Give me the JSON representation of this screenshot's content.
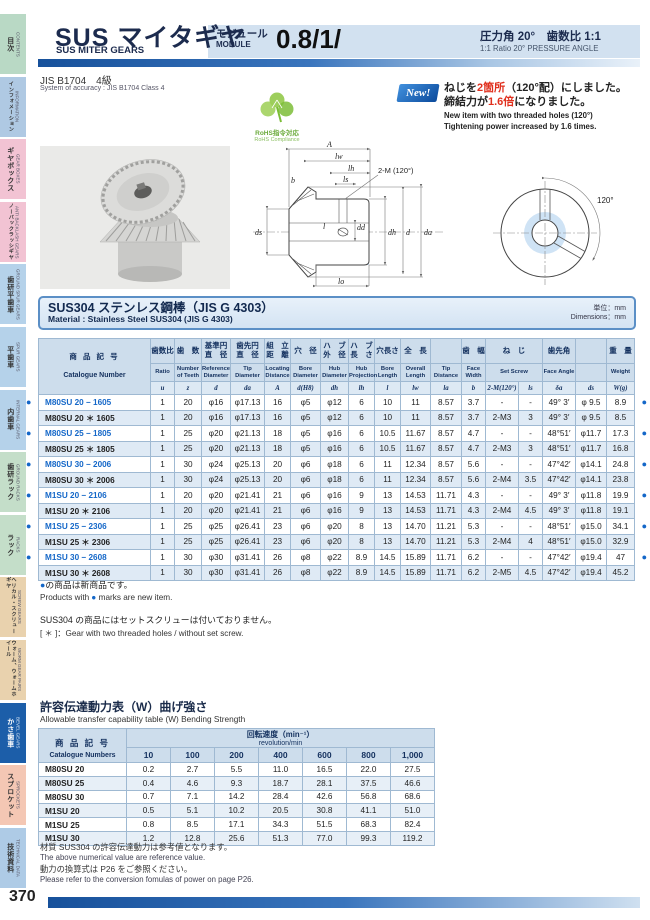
{
  "page_number": "370",
  "colors": {
    "accent_blue": "#1b5fa0",
    "new_red": "#e0301e",
    "catalogue_blue": "#1467c8",
    "active_tab": "#1c5ea9"
  },
  "sidebar": {
    "tabs": [
      {
        "jp": "目次",
        "en": "CONTENTS",
        "color": "#b9d9c5",
        "active": false
      },
      {
        "jp": "インフォメーション",
        "en": "INFORMATION",
        "color": "#afc9e3",
        "active": false
      },
      {
        "jp": "ギヤボックス",
        "en": "GEAR BOXES",
        "color": "#f2c3d3",
        "active": false
      },
      {
        "jp": "ノーバックラッシギヤ",
        "en": "ANTI BACKLASH GEARS",
        "color": "#f2c3d3",
        "active": false
      },
      {
        "jp": "歯研平歯車",
        "en": "GROUND SPUR GEARS",
        "color": "#b5d2ea",
        "active": false
      },
      {
        "jp": "平歯車",
        "en": "SPUR GEARS",
        "color": "#b5d2ea",
        "active": false
      },
      {
        "jp": "内歯車",
        "en": "INTERNAL GEARS",
        "color": "#b5d2ea",
        "active": false
      },
      {
        "jp": "歯研ラック",
        "en": "GROUND RACKS",
        "color": "#c4dec9",
        "active": false
      },
      {
        "jp": "ラック",
        "en": "RACKS",
        "color": "#c4dec9",
        "active": false
      },
      {
        "jp": "ヘリカル・スクリューギヤ",
        "en": "SCREW GEARS",
        "color": "#e9d2ae",
        "active": false
      },
      {
        "jp": "ウォーム、ウォームホイール",
        "en": "WORM GEAR PAIRS",
        "color": "#e9d2ae",
        "active": false
      },
      {
        "jp": "かさ歯車",
        "en": "BEVEL GEARS",
        "color": "#1c5ea9",
        "active": true
      },
      {
        "jp": "スプロケット",
        "en": "SPROCKETS",
        "color": "#f4c7b4",
        "active": false
      },
      {
        "jp": "技術資料",
        "en": "TECHNICAL DATA",
        "color": "#aecbe6",
        "active": false
      }
    ]
  },
  "header": {
    "title_jp": "SUS マイタギヤ",
    "title_en": "SUS MITER GEARS",
    "module_label_jp": "モジュール",
    "module_label_en": "MODULE",
    "module_value": "0.8/1/",
    "pressure_jp": "圧力角 20°　歯数比 1:1",
    "pressure_en": "1:1 Ratio  20° PRESSURE ANGLE"
  },
  "accuracy": {
    "jp": "JIS B1704　4級",
    "en": "System of accuracy : JIS B1704 Class 4"
  },
  "rohs": {
    "jp": "RoHS指令対応",
    "en": "RoHS Compliance"
  },
  "notice": {
    "badge": "New!",
    "line1_pre": "ねじを",
    "line1_red": "2箇所",
    "line1_mid": "（120°配）",
    "line1_post": "にしました。",
    "line2_pre": "締結力が",
    "line2_red": "1.6倍",
    "line2_post": "になりました。",
    "en1": "New item with two threaded holes (120°)",
    "en2": "Tightening power increased by 1.6 times."
  },
  "drawing": {
    "labels": {
      "A": "A",
      "lw": "lw",
      "lh": "lh",
      "ls": "ls",
      "screw": "2-M (120°)",
      "b": "b",
      "ds": "ds",
      "l": "l",
      "dd": "dd",
      "dh": "dh",
      "d": "d",
      "da": "da",
      "lo": "lo",
      "angle": "120°"
    }
  },
  "material_section": {
    "title_jp": "SUS304 ステンレス鋼棒（JIS G 4303）",
    "title_en": "Material : Stainless Steel SUS304 (JIS G 4303)",
    "unit_jp": "単位：mm",
    "unit_en": "Dimensions：mm"
  },
  "main_table": {
    "cat_header": {
      "jp": "商 品 記 号",
      "en": "Catalogue Number"
    },
    "cols": [
      {
        "jp": "歯数比",
        "en": "Ratio",
        "sym": "u"
      },
      {
        "jp": "歯　数",
        "en": "Number of Teeth",
        "sym": "z"
      },
      {
        "jp": "基準円\n直　径",
        "en": "Reference Diameter",
        "sym": "d"
      },
      {
        "jp": "歯先円\n直　径",
        "en": "Tip Diameter",
        "sym": "da"
      },
      {
        "jp": "組　立\n距　離",
        "en": "Locating Distance",
        "sym": "A"
      },
      {
        "jp": "穴　径",
        "en": "Bore Diameter",
        "sym": "d(H8)"
      },
      {
        "jp": "ハ　ブ\n外　径",
        "en": "Hub Diameter",
        "sym": "dh"
      },
      {
        "jp": "ハ　ブ\n長　さ",
        "en": "Hub Projection",
        "sym": "lh"
      },
      {
        "jp": "穴長さ",
        "en": "Bore Length",
        "sym": "l"
      },
      {
        "jp": "全　長",
        "en": "Overall Length",
        "sym": "lw"
      },
      {
        "jp": "",
        "en": "Tip Distance",
        "sym": "la"
      },
      {
        "jp": "歯　幅",
        "en": "Face Width",
        "sym": "b"
      },
      {
        "jp": "ね　じ",
        "en": "Set Screw",
        "sym": "2-M(120°)"
      },
      {
        "jp": "",
        "en": "",
        "sym": "ls"
      },
      {
        "jp": "歯先角",
        "en": "Face Angle",
        "sym": "δa"
      },
      {
        "jp": "",
        "en": "",
        "sym": "ds"
      },
      {
        "jp": "重　量",
        "en": "Weight",
        "sym": "W(g)"
      }
    ],
    "rows": [
      {
        "catalogue": "M80SU 20 − 1605",
        "new": true,
        "values": [
          "1",
          "20",
          "φ16",
          "φ17.13",
          "16",
          "φ5",
          "φ12",
          "6",
          "10",
          "11",
          "8.57",
          "3.7",
          "-",
          "-",
          "49° 3′",
          "φ 9.5",
          "8.9"
        ]
      },
      {
        "catalogue": "M80SU 20 ＊ 1605",
        "new": false,
        "values": [
          "1",
          "20",
          "φ16",
          "φ17.13",
          "16",
          "φ5",
          "φ12",
          "6",
          "10",
          "11",
          "8.57",
          "3.7",
          "2-M3",
          "3",
          "49° 3′",
          "φ 9.5",
          "8.5"
        ]
      },
      {
        "catalogue": "M80SU 25 − 1805",
        "new": true,
        "values": [
          "1",
          "25",
          "φ20",
          "φ21.13",
          "18",
          "φ5",
          "φ16",
          "6",
          "10.5",
          "11.67",
          "8.57",
          "4.7",
          "-",
          "-",
          "48°51′",
          "φ11.7",
          "17.3"
        ]
      },
      {
        "catalogue": "M80SU 25 ＊ 1805",
        "new": false,
        "values": [
          "1",
          "25",
          "φ20",
          "φ21.13",
          "18",
          "φ5",
          "φ16",
          "6",
          "10.5",
          "11.67",
          "8.57",
          "4.7",
          "2-M3",
          "3",
          "48°51′",
          "φ11.7",
          "16.8"
        ]
      },
      {
        "catalogue": "M80SU 30 − 2006",
        "new": true,
        "values": [
          "1",
          "30",
          "φ24",
          "φ25.13",
          "20",
          "φ6",
          "φ18",
          "6",
          "11",
          "12.34",
          "8.57",
          "5.6",
          "-",
          "-",
          "47°42′",
          "φ14.1",
          "24.8"
        ]
      },
      {
        "catalogue": "M80SU 30 ＊ 2006",
        "new": false,
        "values": [
          "1",
          "30",
          "φ24",
          "φ25.13",
          "20",
          "φ6",
          "φ18",
          "6",
          "11",
          "12.34",
          "8.57",
          "5.6",
          "2-M4",
          "3.5",
          "47°42′",
          "φ14.1",
          "23.8"
        ]
      },
      {
        "catalogue": "M1SU 20 − 2106",
        "new": true,
        "values": [
          "1",
          "20",
          "φ20",
          "φ21.41",
          "21",
          "φ6",
          "φ16",
          "9",
          "13",
          "14.53",
          "11.71",
          "4.3",
          "-",
          "-",
          "49° 3′",
          "φ11.8",
          "19.9"
        ]
      },
      {
        "catalogue": "M1SU 20 ＊ 2106",
        "new": false,
        "values": [
          "1",
          "20",
          "φ20",
          "φ21.41",
          "21",
          "φ6",
          "φ16",
          "9",
          "13",
          "14.53",
          "11.71",
          "4.3",
          "2-M4",
          "4.5",
          "49° 3′",
          "φ11.8",
          "19.1"
        ]
      },
      {
        "catalogue": "M1SU 25 − 2306",
        "new": true,
        "values": [
          "1",
          "25",
          "φ25",
          "φ26.41",
          "23",
          "φ6",
          "φ20",
          "8",
          "13",
          "14.70",
          "11.21",
          "5.3",
          "-",
          "-",
          "48°51′",
          "φ15.0",
          "34.1"
        ]
      },
      {
        "catalogue": "M1SU 25 ＊ 2306",
        "new": false,
        "values": [
          "1",
          "25",
          "φ25",
          "φ26.41",
          "23",
          "φ6",
          "φ20",
          "8",
          "13",
          "14.70",
          "11.21",
          "5.3",
          "2-M4",
          "4",
          "48°51′",
          "φ15.0",
          "32.9"
        ]
      },
      {
        "catalogue": "M1SU 30 − 2608",
        "new": true,
        "values": [
          "1",
          "30",
          "φ30",
          "φ31.41",
          "26",
          "φ8",
          "φ22",
          "8.9",
          "14.5",
          "15.89",
          "11.71",
          "6.2",
          "-",
          "-",
          "47°42′",
          "φ19.4",
          "47"
        ]
      },
      {
        "catalogue": "M1SU 30 ＊ 2608",
        "new": false,
        "values": [
          "1",
          "30",
          "φ30",
          "φ31.41",
          "26",
          "φ8",
          "φ22",
          "8.9",
          "14.5",
          "15.89",
          "11.71",
          "6.2",
          "2-M5",
          "4.5",
          "47°42′",
          "φ19.4",
          "45.2"
        ]
      }
    ]
  },
  "notes": {
    "bullet": "●",
    "n1_jp": "の商品は新商品です。",
    "n1_en_pre": "Products with ",
    "n1_en_post": " marks are new item.",
    "n2_jp": "SUS304 の商品にはセットスクリューは付いておりません。",
    "n2_en": "[ ＊ ]：Gear with two threaded holes / without set screw."
  },
  "capacity": {
    "title_jp": "許容伝達動力表（W）曲げ強さ",
    "title_en": "Allowable transfer capability table (W) Bending Strength",
    "cat_header_jp": "商 品 記 号",
    "cat_header_en": "Catalogue Numbers",
    "speed_header_jp": "回転速度（min⁻¹）",
    "speed_header_en": "revolution/min",
    "speeds": [
      "10",
      "100",
      "200",
      "400",
      "600",
      "800",
      "1,000"
    ],
    "rows": [
      {
        "name": "M80SU 20",
        "values": [
          "0.2",
          "2.7",
          "5.5",
          "11.0",
          "16.5",
          "22.0",
          "27.5"
        ]
      },
      {
        "name": "M80SU 25",
        "values": [
          "0.4",
          "4.6",
          "9.3",
          "18.7",
          "28.1",
          "37.5",
          "46.6"
        ]
      },
      {
        "name": "M80SU 30",
        "values": [
          "0.7",
          "7.1",
          "14.2",
          "28.4",
          "42.6",
          "56.8",
          "68.6"
        ]
      },
      {
        "name": "M1SU 20",
        "values": [
          "0.5",
          "5.1",
          "10.2",
          "20.5",
          "30.8",
          "41.1",
          "51.0"
        ]
      },
      {
        "name": "M1SU 25",
        "values": [
          "0.8",
          "8.5",
          "17.1",
          "34.3",
          "51.5",
          "68.3",
          "82.4"
        ]
      },
      {
        "name": "M1SU 30",
        "values": [
          "1.2",
          "12.8",
          "25.6",
          "51.3",
          "77.0",
          "99.3",
          "119.2"
        ]
      }
    ]
  },
  "footer_notes": {
    "l1_jp": "材質 SUS304 の許容伝達動力は参考値となります。",
    "l1_en": "The above numerical value are reference value.",
    "l2_jp": "動力の換算式は P26 をご参照ください。",
    "l2_en": "Please refer to the conversion fomulas of power on page P26."
  }
}
